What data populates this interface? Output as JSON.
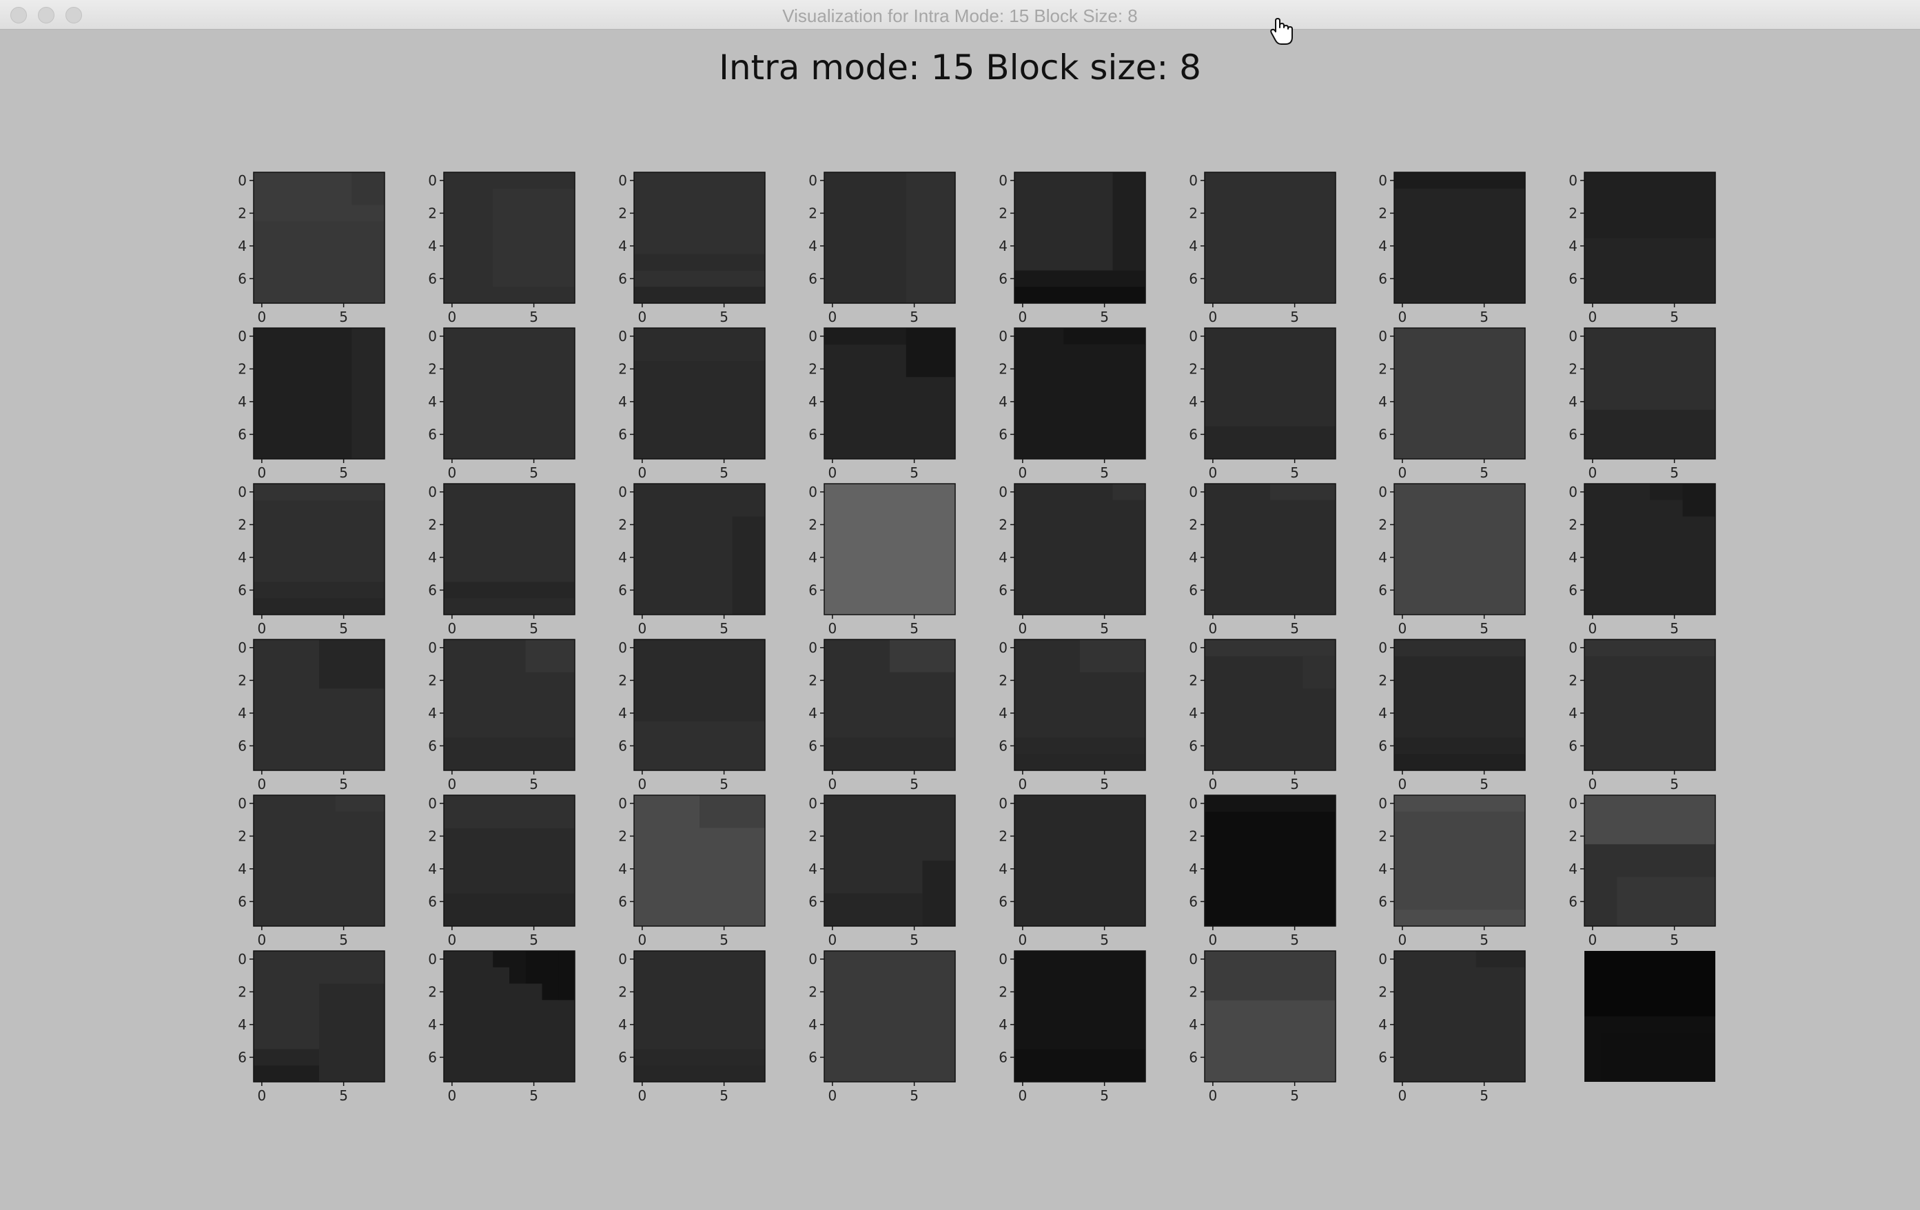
{
  "window": {
    "title": "Visualization for Intra Mode: 15 Block Size: 8",
    "controls": [
      "close",
      "minimize",
      "zoom"
    ]
  },
  "figure": {
    "suptitle": "Intra mode: 15 Block size: 8"
  },
  "chart_data": {
    "type": "heatmap",
    "title": "Intra mode: 15 Block size: 8",
    "layout": {
      "rows": 6,
      "cols": 8
    },
    "colormap": "gray",
    "block_size": 8,
    "xticks": [
      0,
      5
    ],
    "yticks": [
      0,
      2,
      4,
      6
    ],
    "last_panel_axis_off": true,
    "panels": [
      {
        "b": "#383838",
        "v": [
          [
            0,
            0,
            3,
            "#3b3b3b"
          ],
          [
            6,
            0,
            2,
            "#363636"
          ]
        ],
        "h": []
      },
      {
        "b": "#2f2f2f",
        "v": [
          [
            3,
            1,
            7,
            "#333333"
          ]
        ],
        "h": []
      },
      {
        "b": "#303030",
        "v": [],
        "h": [
          [
            5,
            "#2b2b2b"
          ],
          [
            7,
            "#262626"
          ]
        ]
      },
      {
        "b": "#2c2c2c",
        "v": [
          [
            5,
            0,
            8,
            "#303030"
          ]
        ],
        "h": []
      },
      {
        "b": "#2a2a2a",
        "v": [
          [
            6,
            0,
            6,
            "#1f1f1f"
          ]
        ],
        "h": [
          [
            6,
            "#181818"
          ],
          [
            7,
            "#0f0f0f"
          ]
        ]
      },
      {
        "b": "#2f2f2f",
        "v": [],
        "h": []
      },
      {
        "b": "#242424",
        "v": [
          [
            0,
            0,
            1,
            "#1c1c1c"
          ]
        ],
        "h": []
      },
      {
        "b": "#242424",
        "v": [],
        "h": [
          [
            0,
            "#202020"
          ],
          [
            1,
            "#202020"
          ],
          [
            2,
            "#202020"
          ],
          [
            3,
            "#202020"
          ]
        ]
      },
      {
        "b": "#202020",
        "v": [
          [
            6,
            0,
            8,
            "#262626"
          ]
        ],
        "h": []
      },
      {
        "b": "#2f2f2f",
        "v": [],
        "h": []
      },
      {
        "b": "#292929",
        "v": [],
        "h": [
          [
            0,
            "#2c2c2c"
          ],
          [
            1,
            "#2c2c2c"
          ]
        ]
      },
      {
        "b": "#242424",
        "v": [
          [
            5,
            0,
            3,
            "#161616"
          ]
        ],
        "h": [
          [
            0,
            "#1c1c1c"
          ]
        ]
      },
      {
        "b": "#1a1a1a",
        "v": [
          [
            3,
            0,
            1,
            "#141414"
          ]
        ],
        "h": []
      },
      {
        "b": "#2c2c2c",
        "v": [],
        "h": [
          [
            6,
            "#262626"
          ],
          [
            7,
            "#262626"
          ]
        ]
      },
      {
        "b": "#3c3c3c",
        "v": [],
        "h": []
      },
      {
        "b": "#2f2f2f",
        "v": [
          [
            0,
            5,
            8,
            "#262626"
          ]
        ],
        "h": []
      },
      {
        "b": "#2f2f2f",
        "v": [],
        "h": [
          [
            0,
            "#333333"
          ],
          [
            6,
            "#2a2a2a"
          ],
          [
            7,
            "#262626"
          ]
        ]
      },
      {
        "b": "#2e2e2e",
        "v": [],
        "h": [
          [
            6,
            "#262626"
          ],
          [
            7,
            "#2a2a2a"
          ]
        ]
      },
      {
        "b": "#2c2c2c",
        "v": [
          [
            6,
            2,
            8,
            "#262626"
          ]
        ],
        "h": []
      },
      {
        "b": "#636363",
        "v": [],
        "h": []
      },
      {
        "b": "#2a2a2a",
        "v": [
          [
            6,
            0,
            1,
            "#303030"
          ]
        ],
        "h": []
      },
      {
        "b": "#2c2c2c",
        "v": [
          [
            4,
            0,
            1,
            "#323232"
          ]
        ],
        "h": []
      },
      {
        "b": "#454545",
        "v": [],
        "h": []
      },
      {
        "b": "#242424",
        "v": [
          [
            4,
            0,
            1,
            "#1e1e1e"
          ],
          [
            6,
            0,
            2,
            "#1a1a1a"
          ]
        ],
        "h": []
      },
      {
        "b": "#2f2f2f",
        "v": [
          [
            4,
            0,
            3,
            "#262626"
          ]
        ],
        "h": []
      },
      {
        "b": "#2e2e2e",
        "v": [
          [
            5,
            0,
            2,
            "#353535"
          ]
        ],
        "h": [
          [
            6,
            "#2a2a2a"
          ],
          [
            7,
            "#2a2a2a"
          ]
        ]
      },
      {
        "b": "#2a2a2a",
        "v": [
          [
            0,
            5,
            8,
            "#2f2f2f"
          ]
        ],
        "h": []
      },
      {
        "b": "#2e2e2e",
        "v": [
          [
            4,
            0,
            2,
            "#393939"
          ]
        ],
        "h": [
          [
            6,
            "#2a2a2a"
          ],
          [
            7,
            "#2a2a2a"
          ]
        ]
      },
      {
        "b": "#2c2c2c",
        "v": [
          [
            4,
            0,
            2,
            "#333333"
          ]
        ],
        "h": [
          [
            6,
            "#282828"
          ],
          [
            7,
            "#262626"
          ]
        ]
      },
      {
        "b": "#2c2c2c",
        "v": [
          [
            6,
            1,
            3,
            "#303030"
          ]
        ],
        "h": [
          [
            0,
            "#333333"
          ]
        ]
      },
      {
        "b": "#282828",
        "v": [],
        "h": [
          [
            0,
            "#2e2e2e"
          ],
          [
            6,
            "#242424"
          ],
          [
            7,
            "#202020"
          ]
        ]
      },
      {
        "b": "#2e2e2e",
        "v": [],
        "h": [
          [
            0,
            "#333333"
          ]
        ]
      },
      {
        "b": "#303030",
        "v": [
          [
            5,
            0,
            1,
            "#343434"
          ]
        ],
        "h": []
      },
      {
        "b": "#2a2a2a",
        "v": [],
        "h": [
          [
            0,
            "#303030"
          ],
          [
            1,
            "#303030"
          ],
          [
            6,
            "#262626"
          ],
          [
            7,
            "#262626"
          ]
        ]
      },
      {
        "b": "#4a4a4a",
        "v": [
          [
            4,
            0,
            2,
            "#404040"
          ]
        ],
        "h": []
      },
      {
        "b": "#2c2c2c",
        "v": [
          [
            6,
            4,
            8,
            "#222222"
          ]
        ],
        "h": [
          [
            6,
            "#262626"
          ],
          [
            7,
            "#262626"
          ]
        ]
      },
      {
        "b": "#282828",
        "v": [],
        "h": []
      },
      {
        "b": "#0d0d0d",
        "v": [],
        "h": [
          [
            0,
            "#141414"
          ]
        ]
      },
      {
        "b": "#4c4c4c",
        "v": [
          [
            0,
            1,
            7,
            "#454545"
          ]
        ],
        "h": []
      },
      {
        "b": "#4a4a4a",
        "v": [
          [
            0,
            3,
            8,
            "#303030"
          ],
          [
            2,
            5,
            8,
            "#363636"
          ]
        ],
        "h": []
      },
      {
        "b": "#303030",
        "v": [
          [
            4,
            2,
            8,
            "#2a2a2a"
          ]
        ],
        "h": [
          [
            6,
            "#262626"
          ],
          [
            7,
            "#1e1e1e"
          ]
        ]
      },
      {
        "b": "#262626",
        "v": [
          [
            3,
            0,
            1,
            "#151515"
          ],
          [
            4,
            0,
            2,
            "#151515"
          ],
          [
            5,
            0,
            2,
            "#111111"
          ],
          [
            6,
            0,
            3,
            "#111111"
          ],
          [
            7,
            0,
            3,
            "#111111"
          ]
        ],
        "h": []
      },
      {
        "b": "#2c2c2c",
        "v": [],
        "h": [
          [
            6,
            "#282828"
          ],
          [
            7,
            "#262626"
          ]
        ]
      },
      {
        "b": "#3a3a3a",
        "v": [],
        "h": []
      },
      {
        "b": "#141414",
        "v": [],
        "h": [
          [
            6,
            "#101010"
          ],
          [
            7,
            "#101010"
          ]
        ]
      },
      {
        "b": "#484848",
        "v": [],
        "h": [
          [
            0,
            "#3c3c3c"
          ],
          [
            1,
            "#3c3c3c"
          ],
          [
            2,
            "#3c3c3c"
          ]
        ]
      },
      {
        "b": "#2c2c2c",
        "v": [
          [
            5,
            0,
            1,
            "#262626"
          ]
        ],
        "h": []
      },
      {
        "b": "#080808",
        "v": [
          [
            0,
            4,
            8,
            "#101010"
          ],
          [
            1,
            5,
            8,
            "#0f0f0f"
          ]
        ],
        "h": []
      }
    ]
  }
}
